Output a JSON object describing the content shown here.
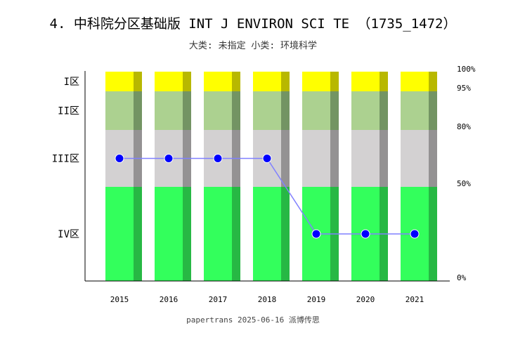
{
  "chart_data": {
    "type": "bar",
    "title": "4. 中科院分区基础版 INT J ENVIRON SCI TE （1735_1472）",
    "subtitle": "大类: 未指定 小类: 环境科学",
    "footer": "papertrans 2025-06-16 派博传思",
    "categories": [
      "2015",
      "2016",
      "2017",
      "2018",
      "2019",
      "2020",
      "2021"
    ],
    "bands": [
      {
        "name": "IV区",
        "from": 0,
        "to": 50,
        "color": "#33ff5c",
        "shade": "#27b844"
      },
      {
        "name": "III区",
        "from": 50,
        "to": 80,
        "color": "#d3d1d2",
        "shade": "#949293"
      },
      {
        "name": "II区",
        "from": 80,
        "to": 95,
        "color": "#acd190",
        "shade": "#739463"
      },
      {
        "name": "I区",
        "from": 95,
        "to": 100,
        "color": "#ffff00",
        "shade": "#b8b800"
      }
    ],
    "right_ticks": [
      "0%",
      "50%",
      "80%",
      "95%",
      "100%"
    ],
    "series": [
      {
        "values": [
          65,
          65,
          65,
          65,
          25,
          25,
          25
        ],
        "color": "#0000ff",
        "line_color": "#8080ff"
      }
    ]
  }
}
